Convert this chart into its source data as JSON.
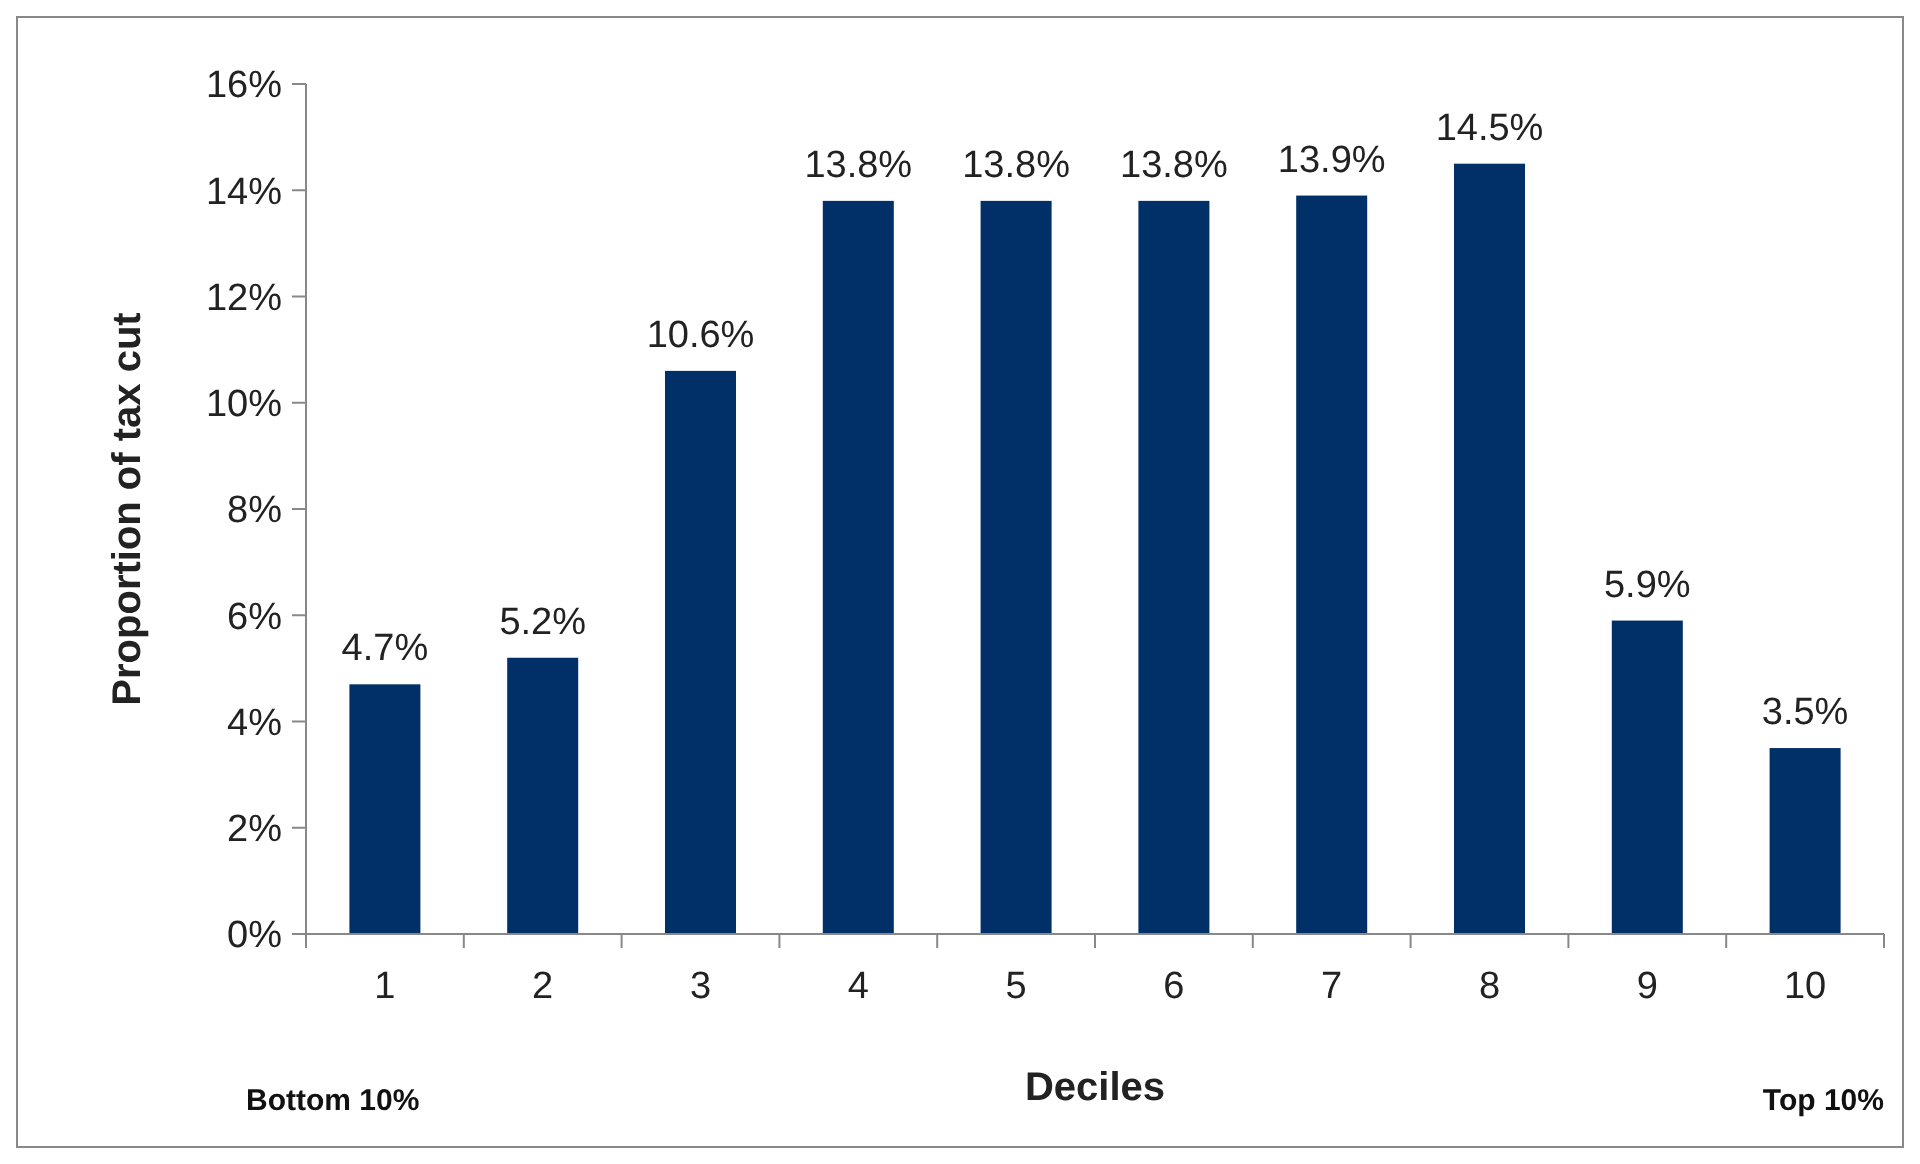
{
  "chart_data": {
    "type": "bar",
    "xlabel": "Deciles",
    "ylabel": "Proportion of tax cut",
    "categories": [
      "1",
      "2",
      "3",
      "4",
      "5",
      "6",
      "7",
      "8",
      "9",
      "10"
    ],
    "values": [
      4.7,
      5.2,
      10.6,
      13.8,
      13.8,
      13.8,
      13.9,
      14.5,
      5.9,
      3.5
    ],
    "value_labels": [
      "4.7%",
      "5.2%",
      "10.6%",
      "13.8%",
      "13.8%",
      "13.8%",
      "13.9%",
      "14.5%",
      "5.9%",
      "3.5%"
    ],
    "color": "#003067",
    "ylim": [
      0,
      16
    ],
    "yticks": [
      {
        "value": 0,
        "label": "0%"
      },
      {
        "value": 2,
        "label": "2%"
      },
      {
        "value": 4,
        "label": "4%"
      },
      {
        "value": 6,
        "label": "6%"
      },
      {
        "value": 8,
        "label": "8%"
      },
      {
        "value": 10,
        "label": "10%"
      },
      {
        "value": 12,
        "label": "12%"
      },
      {
        "value": 14,
        "label": "14%"
      },
      {
        "value": 16,
        "label": "16%"
      }
    ],
    "grid": false,
    "annotations": [
      "Bottom 10%",
      "Top 10%"
    ]
  }
}
